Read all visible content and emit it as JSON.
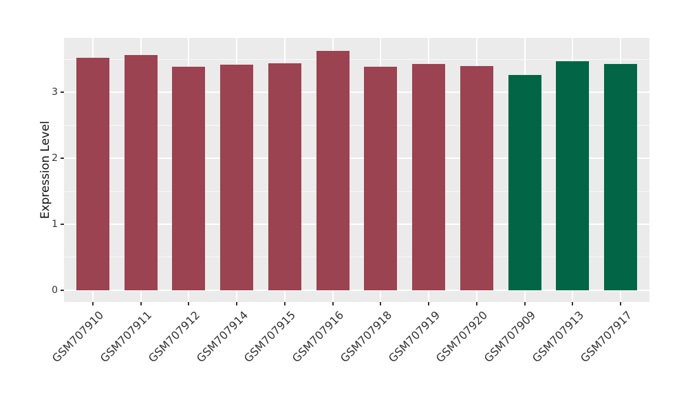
{
  "chart_data": {
    "type": "bar",
    "title": "",
    "xlabel": "",
    "ylabel": "Expression Level",
    "categories": [
      "GSM707910",
      "GSM707911",
      "GSM707912",
      "GSM707914",
      "GSM707915",
      "GSM707916",
      "GSM707918",
      "GSM707919",
      "GSM707920",
      "GSM707909",
      "GSM707913",
      "GSM707917"
    ],
    "values": [
      3.53,
      3.57,
      3.39,
      3.42,
      3.44,
      3.63,
      3.39,
      3.43,
      3.4,
      3.27,
      3.48,
      3.43
    ],
    "bar_colors": [
      "#9B4351",
      "#9B4351",
      "#9B4351",
      "#9B4351",
      "#9B4351",
      "#9B4351",
      "#9B4351",
      "#9B4351",
      "#9B4351",
      "#026646",
      "#026646",
      "#026646"
    ],
    "group_colors": {
      "maroon_group": "#9B4351",
      "green_group": "#026646"
    },
    "yticks": [
      0,
      1,
      2,
      3
    ],
    "ytick_labels": [
      "0",
      "1",
      "2",
      "3"
    ],
    "ylim": [
      -0.18,
      3.83
    ],
    "grid": true,
    "legend": "none",
    "x_tick_rotation_deg": 45,
    "style": {
      "figure_background": "#FFFFFF",
      "panel_background": "#EBEBEB",
      "grid_major_color": "#FFFFFF",
      "grid_minor_color": "#FFFFFF",
      "axis_text_color": "#333333",
      "axis_title_color": "#111111",
      "tick_mark_color": "#333333"
    }
  }
}
